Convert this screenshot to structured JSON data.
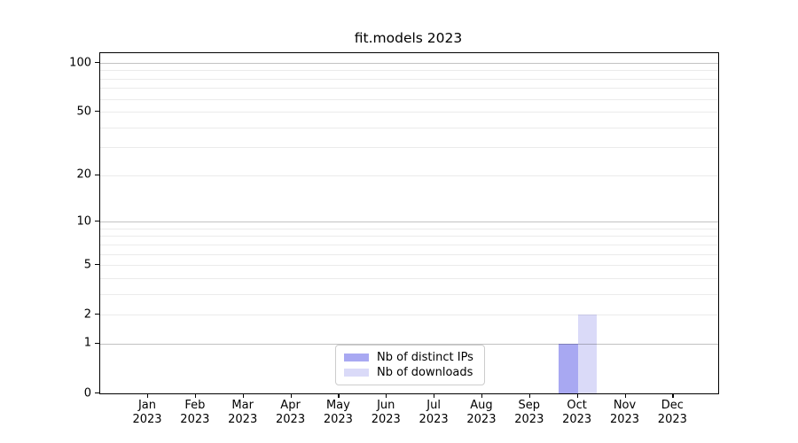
{
  "title": "fit.models 2023",
  "chart_data": {
    "type": "bar",
    "title": "fit.models 2023",
    "categories": [
      "Jan",
      "Feb",
      "Mar",
      "Apr",
      "May",
      "Jun",
      "Jul",
      "Aug",
      "Sep",
      "Oct",
      "Nov",
      "Dec"
    ],
    "category_year": "2023",
    "series": [
      {
        "name": "Nb of distinct IPs",
        "color": "#a8a8f2",
        "values": [
          0,
          0,
          0,
          0,
          0,
          0,
          0,
          0,
          0,
          1,
          0,
          0
        ]
      },
      {
        "name": "Nb of downloads",
        "color": "#dadaf8",
        "values": [
          0,
          0,
          0,
          0,
          0,
          0,
          0,
          0,
          0,
          2,
          0,
          0
        ]
      }
    ],
    "xlabel": "",
    "ylabel": "",
    "y_axis": {
      "scale": "log1p",
      "tick_values": [
        0,
        1,
        2,
        5,
        10,
        20,
        50,
        100
      ],
      "tick_labels": [
        "0",
        "1",
        "2",
        "5",
        "10",
        "20",
        "50",
        "100"
      ],
      "ylim": [
        0,
        115
      ]
    },
    "grid": {
      "major_values": [
        1,
        10,
        100
      ],
      "minor_values": [
        2,
        3,
        4,
        5,
        6,
        7,
        8,
        9,
        20,
        30,
        40,
        50,
        60,
        70,
        80,
        90
      ],
      "major_color": "rgba(0,0,0,0.24)",
      "minor_color": "rgba(0,0,0,0.08)"
    },
    "legend": {
      "position": "bottom-center",
      "entries": [
        "Nb of distinct IPs",
        "Nb of downloads"
      ]
    }
  }
}
